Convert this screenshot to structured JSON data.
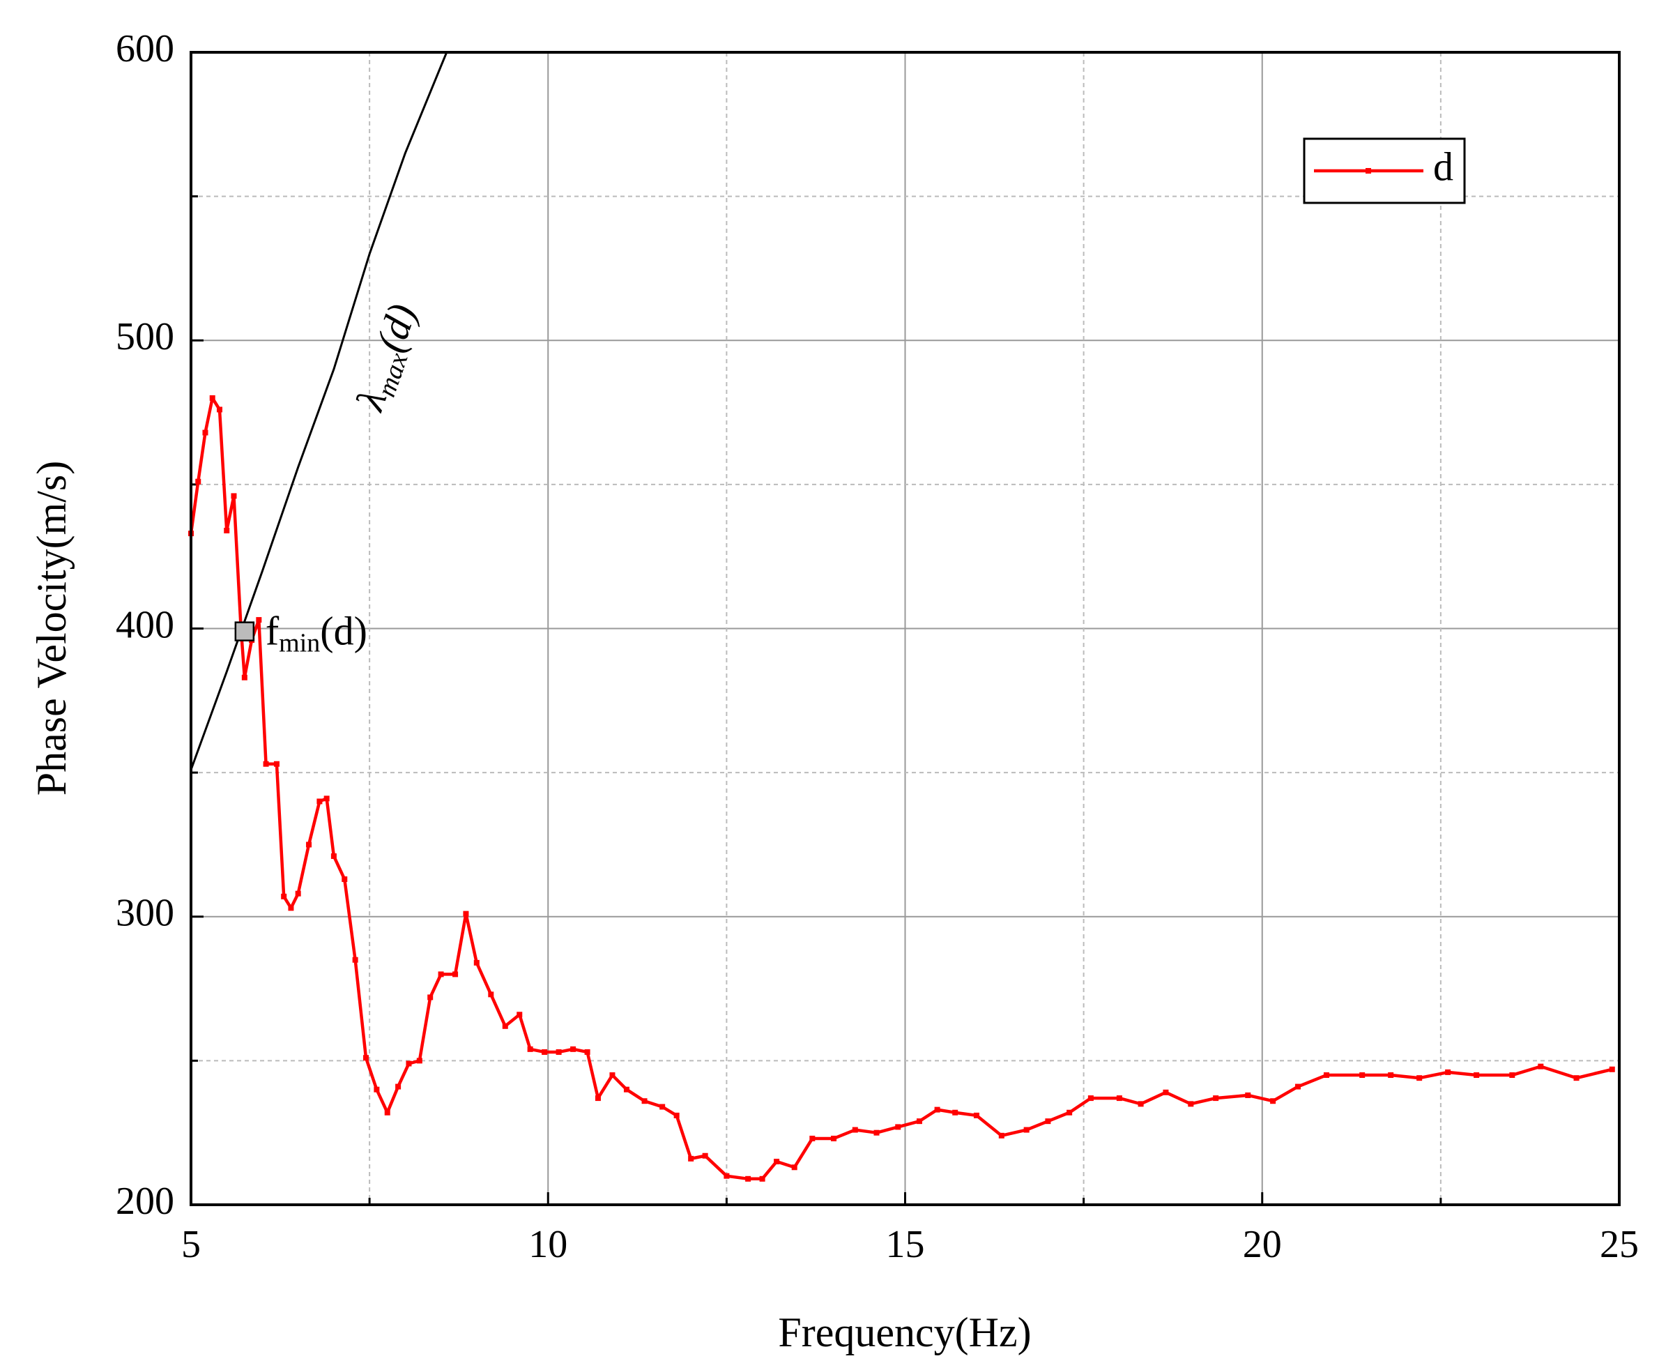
{
  "chart_data": {
    "type": "line",
    "x_label": "Frequency(Hz)",
    "y_label": "Phase Velocity(m/s)",
    "xlim": [
      5,
      25
    ],
    "ylim": [
      200,
      600
    ],
    "xticks": [
      5,
      10,
      15,
      20,
      25
    ],
    "yticks": [
      200,
      300,
      400,
      500,
      600
    ],
    "xminorticks": [
      7.5,
      12.5,
      17.5,
      22.5
    ],
    "yminorticks": [
      250,
      350,
      450,
      550
    ],
    "grid": true,
    "legend_position": "upper right",
    "series": [
      {
        "name": "d",
        "color": "#ff0000",
        "x": [
          5.0,
          5.1,
          5.2,
          5.3,
          5.4,
          5.5,
          5.6,
          5.7,
          5.75,
          5.85,
          5.95,
          6.05,
          6.2,
          6.3,
          6.4,
          6.5,
          6.65,
          6.8,
          6.9,
          7.0,
          7.15,
          7.3,
          7.45,
          7.6,
          7.75,
          7.9,
          8.05,
          8.2,
          8.35,
          8.5,
          8.7,
          8.85,
          9.0,
          9.2,
          9.4,
          9.6,
          9.75,
          9.95,
          10.15,
          10.35,
          10.55,
          10.7,
          10.9,
          11.1,
          11.35,
          11.6,
          11.8,
          12.0,
          12.2,
          12.5,
          12.8,
          13.0,
          13.2,
          13.45,
          13.7,
          14.0,
          14.3,
          14.6,
          14.9,
          15.2,
          15.45,
          15.7,
          16.0,
          16.35,
          16.7,
          17.0,
          17.3,
          17.6,
          18.0,
          18.3,
          18.65,
          19.0,
          19.35,
          19.8,
          20.15,
          20.5,
          20.9,
          21.4,
          21.8,
          22.2,
          22.6,
          23.0,
          23.5,
          23.9,
          24.4,
          24.9
        ],
        "values": [
          433,
          451,
          468,
          480,
          476,
          434,
          446,
          400,
          383,
          396,
          403,
          353,
          353,
          307,
          303,
          308,
          325,
          340,
          341,
          321,
          313,
          285,
          251,
          240,
          232,
          241,
          249,
          250,
          272,
          280,
          280,
          301,
          284,
          273,
          262,
          266,
          254,
          253,
          253,
          254,
          253,
          237,
          245,
          240,
          236,
          234,
          231,
          216,
          217,
          210,
          209,
          209,
          215,
          213,
          223,
          223,
          226,
          225,
          227,
          229,
          233,
          232,
          231,
          224,
          226,
          229,
          232,
          237,
          237,
          235,
          239,
          235,
          237,
          238,
          236,
          241,
          245,
          245,
          245,
          244,
          246,
          245,
          245,
          248,
          244,
          247
        ]
      }
    ],
    "reference_curve": {
      "color": "#000000",
      "label": {
        "main": "λ",
        "sub": "max",
        "tail": "(d)"
      },
      "x": [
        5.0,
        5.5,
        6.0,
        6.5,
        7.0,
        7.5,
        8.0,
        8.58
      ],
      "values": [
        351,
        385,
        420,
        456,
        490,
        530,
        565,
        600
      ]
    },
    "marker": {
      "x": 5.75,
      "y": 399,
      "label": {
        "main": "f",
        "sub": "min",
        "tail": "(d)"
      }
    }
  }
}
